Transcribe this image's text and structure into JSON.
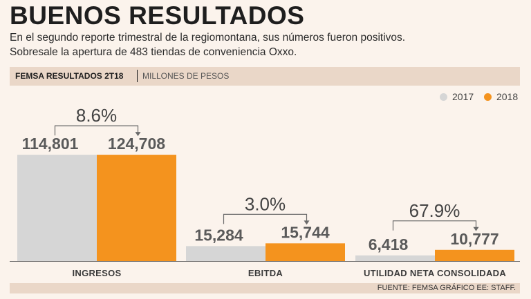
{
  "header": {
    "title": "BUENOS RESULTADOS",
    "subtitle_line1": "En el segundo reporte trimestral de la regiomontana, sus números fueron positivos.",
    "subtitle_line2": "Sobresale la apertura de 483 tiendas de conveniencia Oxxo."
  },
  "band": {
    "title": "FEMSA RESULTADOS 2T18",
    "units": "MILLONES DE PESOS"
  },
  "legend": [
    {
      "label": "2017",
      "color": "#d6d6d6"
    },
    {
      "label": "2018",
      "color": "#f4931e"
    }
  ],
  "footer": {
    "source": "FUENTE: FEMSA GRÁFICO EE: STAFF."
  },
  "chart_data": {
    "type": "bar",
    "title": "FEMSA RESULTADOS 2T18",
    "ylabel": "MILLONES DE PESOS",
    "categories": [
      "INGRESOS",
      "EBITDA",
      "UTILIDAD NETA CONSOLIDADA"
    ],
    "series": [
      {
        "name": "2017",
        "values": [
          114801,
          15284,
          6418
        ],
        "labels": [
          "114,801",
          "15,284",
          "6,418"
        ],
        "color": "#d6d6d6"
      },
      {
        "name": "2018",
        "values": [
          124708,
          15744,
          10777
        ],
        "labels": [
          "124,708",
          "15,744",
          "10,777"
        ],
        "color": "#f4931e"
      }
    ],
    "growth": [
      "8.6%",
      "3.0%",
      "67.9%"
    ],
    "note": "Bar heights are stylized in the original graphic and not drawn to a common scale.",
    "display_heights": [
      0.57,
      0.08,
      0.03,
      0.57,
      0.095,
      0.06
    ]
  }
}
